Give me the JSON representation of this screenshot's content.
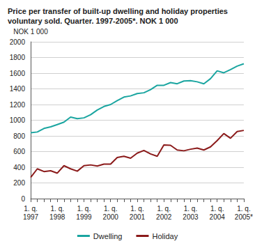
{
  "chart_data": {
    "type": "line",
    "title": "Price per transfer of built-up dwelling and holiday properties voluntary sold. Quarter. 1997-2005*. NOK 1 000",
    "y_label": "NOK 1 000",
    "categories": [
      "1. q.\n1997",
      null,
      null,
      null,
      "1. q.\n1998",
      null,
      null,
      null,
      "1. q.\n1999",
      null,
      null,
      null,
      "1. q.\n2000",
      null,
      null,
      null,
      "1. q.\n2001",
      null,
      null,
      null,
      "1. q.\n2002",
      null,
      null,
      null,
      "1. q.\n2003",
      null,
      null,
      null,
      "1. q.\n2004",
      null,
      null,
      null,
      "1. q.\n2005*"
    ],
    "series": [
      {
        "name": "Dwelling",
        "color": "#1aa5a0",
        "values": [
          840,
          850,
          895,
          915,
          945,
          975,
          1040,
          1020,
          1030,
          1070,
          1130,
          1175,
          1200,
          1250,
          1295,
          1310,
          1340,
          1350,
          1390,
          1445,
          1445,
          1480,
          1465,
          1500,
          1505,
          1490,
          1465,
          1530,
          1630,
          1605,
          1645,
          1690,
          1720
        ]
      },
      {
        "name": "Holiday",
        "color": "#8b1a1a",
        "values": [
          270,
          380,
          345,
          355,
          325,
          420,
          380,
          350,
          420,
          430,
          415,
          440,
          440,
          525,
          540,
          515,
          580,
          615,
          570,
          540,
          685,
          680,
          620,
          610,
          630,
          645,
          620,
          660,
          740,
          830,
          770,
          855,
          870
        ]
      }
    ],
    "ylim": [
      0,
      2000
    ],
    "yticks": [
      0,
      200,
      400,
      600,
      800,
      1000,
      1200,
      1400,
      1600,
      1800,
      2000
    ],
    "grid": true,
    "legend": "bottom"
  }
}
